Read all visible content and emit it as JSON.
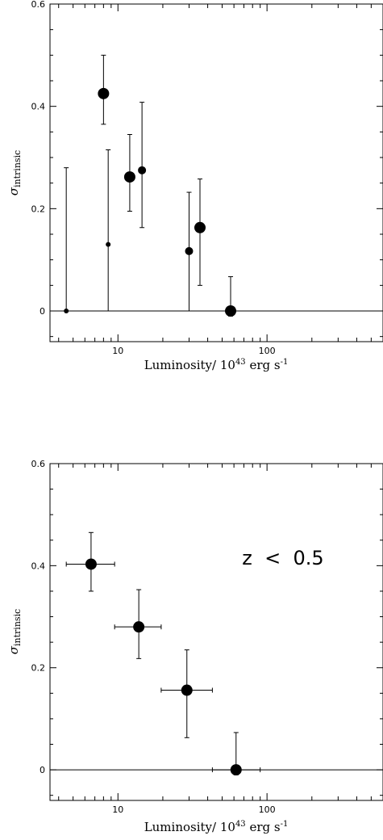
{
  "chart_data": [
    {
      "type": "scatter",
      "xscale": "log",
      "xlim": [
        3.5,
        600
      ],
      "ylim": [
        -0.06,
        0.6
      ],
      "xticks": [
        "10",
        "100"
      ],
      "xtick_values": [
        10,
        100
      ],
      "yticks": [
        "0",
        "0.2",
        "0.4",
        "0.6"
      ],
      "ytick_values": [
        0,
        0.2,
        0.4,
        0.6
      ],
      "xlabel": "Luminosity/ 10",
      "xlabel_exp": "43",
      "xlabel_rest": " erg s",
      "xlabel_rest_exp": "-1",
      "ylabel": "σ",
      "ylabel_sub": "intrinsic",
      "zero_line": true,
      "points": [
        {
          "x": 4.5,
          "y": 0.0,
          "ylo": 0.0,
          "yhi": 0.28,
          "size": "small"
        },
        {
          "x": 8.0,
          "y": 0.425,
          "ylo": 0.365,
          "yhi": 0.5,
          "size": "large"
        },
        {
          "x": 8.6,
          "y": 0.13,
          "ylo": 0.0,
          "yhi": 0.315,
          "size": "small"
        },
        {
          "x": 12.0,
          "y": 0.262,
          "ylo": 0.195,
          "yhi": 0.345,
          "size": "large"
        },
        {
          "x": 14.5,
          "y": 0.275,
          "ylo": 0.163,
          "yhi": 0.408,
          "size": "medium"
        },
        {
          "x": 30.0,
          "y": 0.117,
          "ylo": 0.0,
          "yhi": 0.232,
          "size": "medium"
        },
        {
          "x": 35.5,
          "y": 0.163,
          "ylo": 0.05,
          "yhi": 0.258,
          "size": "large"
        },
        {
          "x": 57.0,
          "y": 0.0,
          "ylo": -0.01,
          "yhi": 0.067,
          "size": "large"
        }
      ]
    },
    {
      "type": "scatter",
      "xscale": "log",
      "xlim": [
        3.5,
        600
      ],
      "ylim": [
        -0.06,
        0.6
      ],
      "xticks": [
        "10",
        "100"
      ],
      "xtick_values": [
        10,
        100
      ],
      "yticks": [
        "0",
        "0.2",
        "0.4",
        "0.6"
      ],
      "ytick_values": [
        0,
        0.2,
        0.4,
        0.6
      ],
      "xlabel": "Luminosity/ 10",
      "xlabel_exp": "43",
      "xlabel_rest": " erg s",
      "xlabel_rest_exp": "-1",
      "ylabel": "σ",
      "ylabel_sub": "intrinsic",
      "annotation": "z  <  0.5",
      "zero_line": true,
      "points": [
        {
          "x": 6.6,
          "y": 0.403,
          "ylo": 0.35,
          "yhi": 0.465,
          "xlo": 4.5,
          "xhi": 9.5,
          "size": "large"
        },
        {
          "x": 13.8,
          "y": 0.28,
          "ylo": 0.218,
          "yhi": 0.353,
          "xlo": 9.5,
          "xhi": 19.5,
          "size": "large"
        },
        {
          "x": 29.0,
          "y": 0.156,
          "ylo": 0.063,
          "yhi": 0.235,
          "xlo": 19.5,
          "xhi": 43.0,
          "size": "large"
        },
        {
          "x": 62.0,
          "y": 0.0,
          "ylo": -0.01,
          "yhi": 0.073,
          "xlo": 43.0,
          "xhi": 90.0,
          "size": "large"
        }
      ]
    }
  ]
}
